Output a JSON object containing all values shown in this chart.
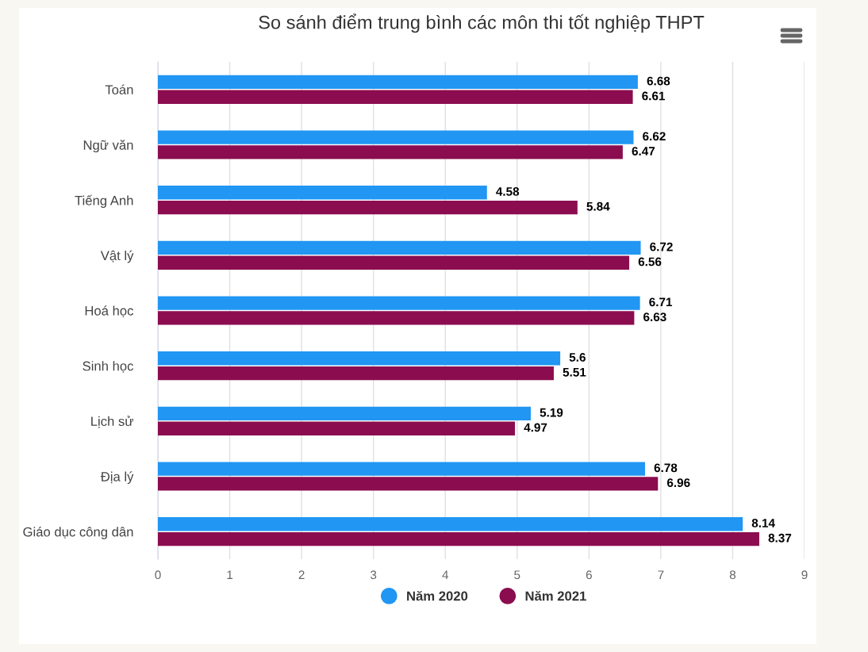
{
  "chart_data": {
    "type": "bar",
    "orientation": "horizontal",
    "title": "So sánh điểm trung bình các môn thi tốt nghiệp THPT",
    "categories": [
      "Toán",
      "Ngữ văn",
      "Tiếng Anh",
      "Vật lý",
      "Hoá học",
      "Sinh học",
      "Lịch sử",
      "Địa lý",
      "Giáo dục công dân"
    ],
    "series": [
      {
        "name": "Năm 2020",
        "color": "#2196f3",
        "values": [
          6.68,
          6.62,
          4.58,
          6.72,
          6.71,
          5.6,
          5.19,
          6.78,
          8.14
        ]
      },
      {
        "name": "Năm 2021",
        "color": "#8b0d4f",
        "values": [
          6.61,
          6.47,
          5.84,
          6.56,
          6.63,
          5.51,
          4.97,
          6.96,
          8.37
        ]
      }
    ],
    "xlim": [
      0,
      9
    ],
    "xticks": [
      0,
      1,
      2,
      3,
      4,
      5,
      6,
      7,
      8,
      9
    ],
    "grid": "x",
    "legend": "bottom",
    "data_labels": true
  }
}
